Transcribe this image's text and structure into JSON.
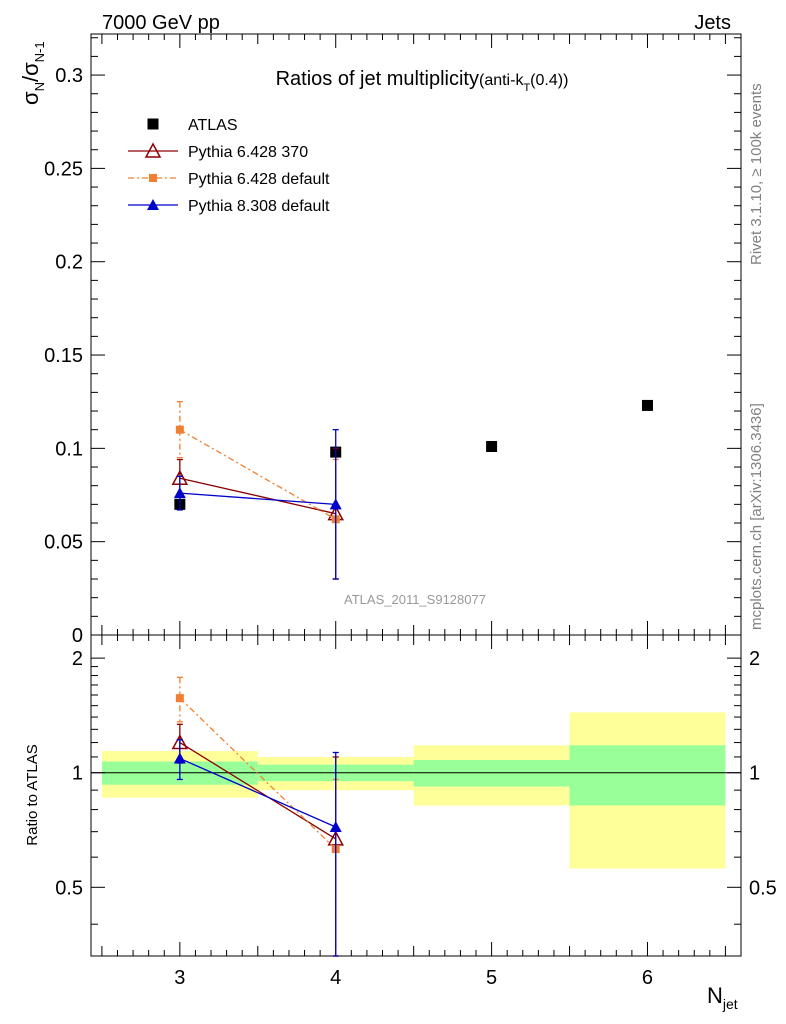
{
  "header": {
    "left": "7000 GeV pp",
    "right": "Jets"
  },
  "side_text": {
    "rivet": "Rivet 3.1.10, ≥ 100k events",
    "mcplots": "mcplots.cern.ch [arXiv:1306.3436]"
  },
  "chart_data": [
    {
      "type": "scatter",
      "title": "Ratios of jet multiplicity",
      "title_suffix": "(anti-k",
      "title_suffix_sub": "T",
      "title_suffix_end": "(0.4))",
      "ylabel_main": "σ",
      "ylabel_sub1": "N",
      "ylabel_mid": "/σ",
      "ylabel_sub2": "N-1",
      "watermark": "ATLAS_2011_S9128077",
      "xlim": [
        2.43,
        6.6
      ],
      "ylim": [
        0,
        0.322
      ],
      "yticks": [
        0,
        0.05,
        0.1,
        0.15,
        0.2,
        0.25,
        0.3
      ],
      "ytick_labels": [
        "0",
        "0.05",
        "0.1",
        "0.15",
        "0.2",
        "0.25",
        "0.3"
      ],
      "legend_position": "top-left",
      "series": [
        {
          "name": "ATLAS",
          "color": "#000000",
          "marker": "square",
          "line": "none",
          "points": [
            {
              "x": 3,
              "y": 0.07
            },
            {
              "x": 4,
              "y": 0.098
            },
            {
              "x": 5,
              "y": 0.101
            },
            {
              "x": 6,
              "y": 0.123
            }
          ]
        },
        {
          "name": "Pythia 6.428 370",
          "color": "#8b0000",
          "marker": "open-triangle",
          "line": "solid",
          "points": [
            {
              "x": 3,
              "y": 0.084,
              "err": 0.01
            },
            {
              "x": 4,
              "y": 0.065,
              "err": 0.035
            }
          ]
        },
        {
          "name": "Pythia 6.428 default",
          "color": "#f08030",
          "marker": "small-square",
          "line": "dashdot",
          "points": [
            {
              "x": 3,
              "y": 0.11,
              "err": 0.015
            },
            {
              "x": 4,
              "y": 0.062,
              "err": 0.032
            }
          ]
        },
        {
          "name": "Pythia 8.308 default",
          "color": "#0000cc",
          "marker": "triangle",
          "line": "solid",
          "points": [
            {
              "x": 3,
              "y": 0.076,
              "err": 0.009
            },
            {
              "x": 4,
              "y": 0.07,
              "err": 0.04
            }
          ]
        }
      ]
    },
    {
      "type": "scatter",
      "ylabel": "Ratio to ATLAS",
      "xlabel_main": "N",
      "xlabel_sub": "jet",
      "xlim": [
        2.43,
        6.6
      ],
      "ylim": [
        0.33,
        2.3
      ],
      "yticks": [
        0.5,
        1,
        2
      ],
      "ytick_labels": [
        "0.5",
        "1",
        "2"
      ],
      "xticks": [
        3,
        4,
        5,
        6
      ],
      "xtick_labels": [
        "3",
        "4",
        "5",
        "6"
      ],
      "bands": [
        {
          "x0": 2.5,
          "x1": 3.5,
          "green": [
            0.93,
            1.07
          ],
          "yellow": [
            0.86,
            1.14
          ]
        },
        {
          "x0": 3.5,
          "x1": 4.5,
          "green": [
            0.95,
            1.05
          ],
          "yellow": [
            0.9,
            1.1
          ]
        },
        {
          "x0": 4.5,
          "x1": 5.5,
          "green": [
            0.92,
            1.08
          ],
          "yellow": [
            0.82,
            1.18
          ]
        },
        {
          "x0": 5.5,
          "x1": 6.5,
          "green": [
            0.82,
            1.18
          ],
          "yellow": [
            0.56,
            1.44
          ]
        }
      ],
      "series": [
        {
          "name": "Pythia 6.428 370",
          "color": "#8b0000",
          "marker": "open-triangle",
          "line": "solid",
          "points": [
            {
              "x": 3,
              "y": 1.2,
              "err": 0.14
            },
            {
              "x": 4,
              "y": 0.67,
              "err": 0.43
            }
          ]
        },
        {
          "name": "Pythia 6.428 default",
          "color": "#f08030",
          "marker": "small-square",
          "line": "dashdot",
          "points": [
            {
              "x": 3,
              "y": 1.57,
              "err": 0.21
            },
            {
              "x": 4,
              "y": 0.63,
              "err": 0.33
            }
          ]
        },
        {
          "name": "Pythia 8.308 default",
          "color": "#0000cc",
          "marker": "triangle",
          "line": "solid",
          "points": [
            {
              "x": 3,
              "y": 1.09,
              "err": 0.13
            },
            {
              "x": 4,
              "y": 0.72,
              "err": 0.41
            }
          ]
        }
      ]
    }
  ]
}
